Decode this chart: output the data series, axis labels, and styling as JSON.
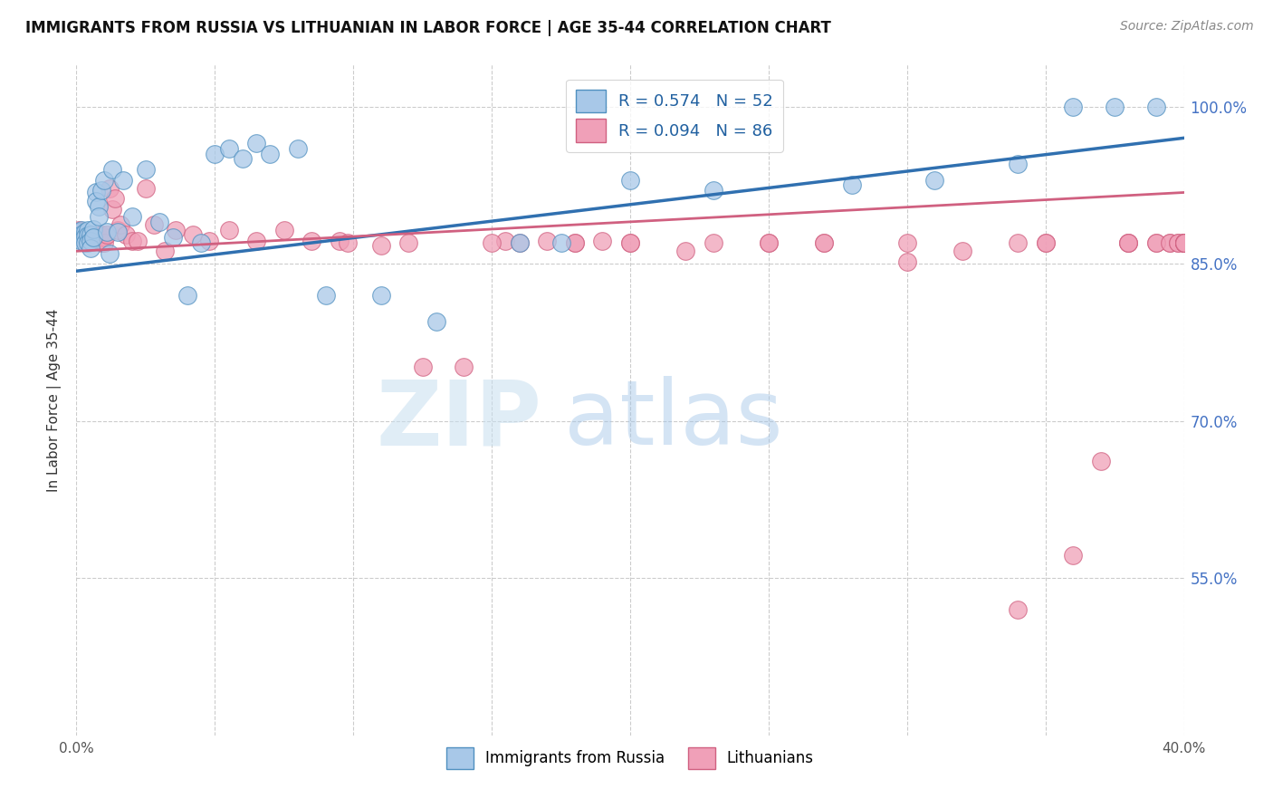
{
  "title": "IMMIGRANTS FROM RUSSIA VS LITHUANIAN IN LABOR FORCE | AGE 35-44 CORRELATION CHART",
  "source": "Source: ZipAtlas.com",
  "ylabel": "In Labor Force | Age 35-44",
  "xlim": [
    0.0,
    0.4
  ],
  "ylim": [
    0.4,
    1.04
  ],
  "ytick_vals": [
    0.55,
    0.7,
    0.85,
    1.0
  ],
  "ytick_labels": [
    "55.0%",
    "70.0%",
    "85.0%",
    "100.0%"
  ],
  "xtick_vals": [
    0.0,
    0.05,
    0.1,
    0.15,
    0.2,
    0.25,
    0.3,
    0.35,
    0.4
  ],
  "xtick_labels": [
    "0.0%",
    "",
    "",
    "",
    "",
    "",
    "",
    "",
    "40.0%"
  ],
  "legend_blue_label": "R = 0.574   N = 52",
  "legend_pink_label": "R = 0.094   N = 86",
  "legend_bottom_blue": "Immigrants from Russia",
  "legend_bottom_pink": "Lithuanians",
  "blue_fill": "#a8c8e8",
  "blue_edge": "#5090c0",
  "pink_fill": "#f0a0b8",
  "pink_edge": "#d06080",
  "blue_line_color": "#3070b0",
  "pink_line_color": "#d06080",
  "blue_scatter_x": [
    0.001,
    0.001,
    0.002,
    0.002,
    0.002,
    0.003,
    0.003,
    0.003,
    0.004,
    0.004,
    0.004,
    0.005,
    0.005,
    0.005,
    0.006,
    0.006,
    0.007,
    0.007,
    0.008,
    0.008,
    0.009,
    0.01,
    0.011,
    0.012,
    0.013,
    0.015,
    0.017,
    0.02,
    0.025,
    0.03,
    0.035,
    0.04,
    0.045,
    0.05,
    0.055,
    0.06,
    0.065,
    0.07,
    0.08,
    0.09,
    0.11,
    0.13,
    0.16,
    0.175,
    0.2,
    0.23,
    0.28,
    0.31,
    0.34,
    0.36,
    0.375,
    0.39
  ],
  "blue_scatter_y": [
    0.88,
    0.875,
    0.882,
    0.878,
    0.872,
    0.88,
    0.876,
    0.87,
    0.882,
    0.877,
    0.87,
    0.878,
    0.872,
    0.865,
    0.883,
    0.875,
    0.918,
    0.91,
    0.905,
    0.895,
    0.92,
    0.93,
    0.88,
    0.86,
    0.94,
    0.88,
    0.93,
    0.895,
    0.94,
    0.89,
    0.875,
    0.82,
    0.87,
    0.955,
    0.96,
    0.95,
    0.965,
    0.955,
    0.96,
    0.82,
    0.82,
    0.795,
    0.87,
    0.87,
    0.93,
    0.92,
    0.925,
    0.93,
    0.945,
    1.0,
    1.0,
    1.0
  ],
  "pink_scatter_x": [
    0.001,
    0.001,
    0.002,
    0.002,
    0.003,
    0.003,
    0.004,
    0.004,
    0.005,
    0.005,
    0.006,
    0.006,
    0.007,
    0.007,
    0.008,
    0.008,
    0.009,
    0.009,
    0.01,
    0.01,
    0.011,
    0.012,
    0.013,
    0.014,
    0.015,
    0.016,
    0.018,
    0.02,
    0.022,
    0.025,
    0.028,
    0.032,
    0.036,
    0.042,
    0.048,
    0.055,
    0.065,
    0.075,
    0.085,
    0.095,
    0.11,
    0.125,
    0.14,
    0.155,
    0.17,
    0.19,
    0.22,
    0.25,
    0.27,
    0.3,
    0.32,
    0.34,
    0.36,
    0.37,
    0.38,
    0.39,
    0.395,
    0.098,
    0.16,
    0.2,
    0.23,
    0.27,
    0.12,
    0.15,
    0.18,
    0.34,
    0.38,
    0.35,
    0.18,
    0.2,
    0.25,
    0.3,
    0.35,
    0.38,
    0.39,
    0.395,
    0.398,
    0.398,
    0.4,
    0.4,
    0.4,
    0.4,
    0.4,
    0.4,
    0.4,
    0.4
  ],
  "pink_scatter_y": [
    0.882,
    0.878,
    0.88,
    0.875,
    0.878,
    0.873,
    0.876,
    0.872,
    0.878,
    0.874,
    0.877,
    0.871,
    0.875,
    0.873,
    0.876,
    0.872,
    0.878,
    0.87,
    0.875,
    0.87,
    0.878,
    0.922,
    0.902,
    0.912,
    0.882,
    0.887,
    0.878,
    0.872,
    0.872,
    0.922,
    0.887,
    0.862,
    0.882,
    0.878,
    0.872,
    0.882,
    0.872,
    0.882,
    0.872,
    0.872,
    0.867,
    0.752,
    0.752,
    0.872,
    0.872,
    0.872,
    0.862,
    0.87,
    0.87,
    0.852,
    0.862,
    0.52,
    0.572,
    0.662,
    0.87,
    0.87,
    0.87,
    0.87,
    0.87,
    0.87,
    0.87,
    0.87,
    0.87,
    0.87,
    0.87,
    0.87,
    0.87,
    0.87,
    0.87,
    0.87,
    0.87,
    0.87,
    0.87,
    0.87,
    0.87,
    0.87,
    0.87,
    0.87,
    0.87,
    0.87,
    0.87,
    0.87,
    0.87,
    0.87,
    0.87,
    0.87
  ],
  "blue_trend_x0": 0.0,
  "blue_trend_x1": 0.4,
  "blue_trend_y0": 0.843,
  "blue_trend_y1": 0.97,
  "pink_trend_x0": 0.0,
  "pink_trend_x1": 0.4,
  "pink_trend_y0": 0.862,
  "pink_trend_y1": 0.918,
  "watermark_text": "ZIPatlas",
  "background_color": "#ffffff",
  "grid_color": "#cccccc"
}
